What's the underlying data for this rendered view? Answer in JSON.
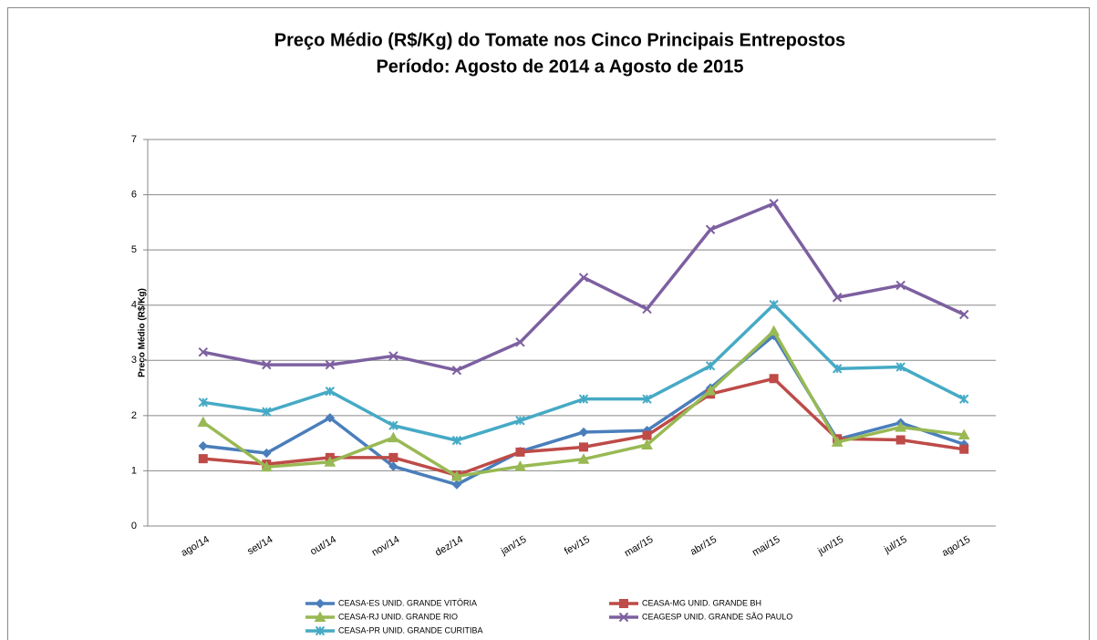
{
  "chart_data": {
    "type": "line",
    "title": "Preço Médio (R$/Kg) do Tomate nos Cinco Principais Entrepostos",
    "subtitle": "Período: Agosto de 2014 a Agosto de 2015",
    "y_label": "Preço Médio  (R$/Kg)",
    "categories": [
      "ago/14",
      "set/14",
      "out/14",
      "nov/14",
      "dez/14",
      "jan/15",
      "fev/15",
      "mar/15",
      "abr/15",
      "mai/15",
      "jun/15",
      "jul/15",
      "ago/15"
    ],
    "ylim": [
      0,
      7
    ],
    "yticks": [
      0,
      1,
      2,
      3,
      4,
      5,
      6,
      7
    ],
    "grid": true,
    "legend": "bottom",
    "series": [
      {
        "name": "CEASA-ES UNID. GRANDE VITÓRIA",
        "color": "#4a7ebb",
        "marker": "diamond",
        "values": [
          1.45,
          1.32,
          1.96,
          1.08,
          0.75,
          1.35,
          1.7,
          1.73,
          2.5,
          3.45,
          1.57,
          1.87,
          1.48
        ]
      },
      {
        "name": "CEASA-MG UNID. GRANDE BH",
        "color": "#be4b48",
        "marker": "square",
        "values": [
          1.22,
          1.12,
          1.24,
          1.24,
          0.92,
          1.34,
          1.43,
          1.64,
          2.39,
          2.67,
          1.58,
          1.56,
          1.39
        ]
      },
      {
        "name": "CEASA-RJ UNID. GRANDE RIO",
        "color": "#98b954",
        "marker": "triangle",
        "values": [
          1.88,
          1.07,
          1.16,
          1.6,
          0.9,
          1.08,
          1.21,
          1.47,
          2.45,
          3.53,
          1.52,
          1.79,
          1.65
        ]
      },
      {
        "name": "CEAGESP UNID. GRANDE SÃO PAULO",
        "color": "#7d60a0",
        "marker": "x",
        "values": [
          3.15,
          2.92,
          2.92,
          3.08,
          2.82,
          3.33,
          4.5,
          3.93,
          5.37,
          5.84,
          4.14,
          4.36,
          3.83
        ]
      },
      {
        "name": "CEASA-PR UNID. GRANDE CURITIBA",
        "color": "#46aac5",
        "marker": "star",
        "values": [
          2.24,
          2.07,
          2.44,
          1.82,
          1.55,
          1.91,
          2.3,
          2.3,
          2.9,
          4.01,
          2.85,
          2.88,
          2.3
        ]
      }
    ]
  }
}
